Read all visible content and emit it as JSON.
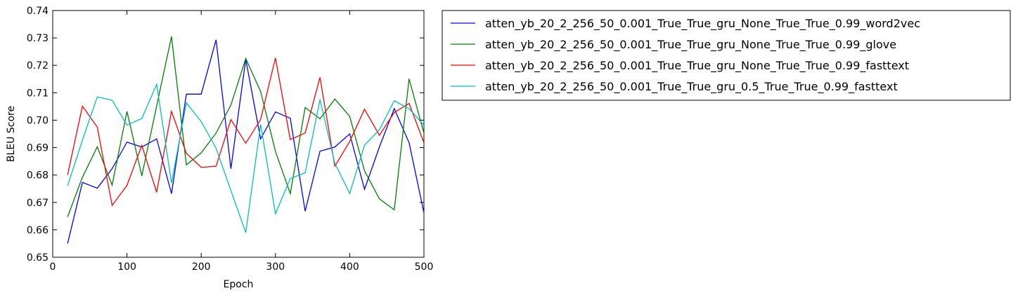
{
  "chart_data": {
    "type": "line",
    "title": "",
    "xlabel": "Epoch",
    "ylabel": "BLEU Score",
    "xlim": [
      0,
      500
    ],
    "ylim": [
      0.65,
      0.74
    ],
    "xticks": [
      0,
      100,
      200,
      300,
      400,
      500
    ],
    "yticks": [
      0.65,
      0.66,
      0.67,
      0.68,
      0.69,
      0.7,
      0.71,
      0.72,
      0.73,
      0.74
    ],
    "grid": false,
    "legend_position": "outside-right",
    "x": [
      20,
      40,
      60,
      80,
      100,
      120,
      140,
      160,
      180,
      200,
      220,
      240,
      260,
      280,
      300,
      320,
      340,
      360,
      380,
      400,
      420,
      440,
      460,
      480,
      500
    ],
    "series": [
      {
        "name": "atten_yb_20_2_256_50_0.001_True_True_gru_None_True_True_0.99_word2vec",
        "color": "#0000ff",
        "values": [
          0.655,
          0.6773,
          0.6752,
          0.6823,
          0.692,
          0.6902,
          0.6932,
          0.6732,
          0.7095,
          0.7095,
          0.7293,
          0.6823,
          0.7222,
          0.6932,
          0.703,
          0.7007,
          0.6668,
          0.6887,
          0.6902,
          0.695,
          0.6748,
          0.6902,
          0.7042,
          0.6918,
          0.6662
        ]
      },
      {
        "name": "atten_yb_20_2_256_50_0.001_True_True_gru_None_True_True_0.99_glove",
        "color": "#008000",
        "values": [
          0.6647,
          0.6792,
          0.6903,
          0.6763,
          0.7032,
          0.6797,
          0.7052,
          0.7305,
          0.6837,
          0.6881,
          0.6953,
          0.7055,
          0.7225,
          0.7105,
          0.6886,
          0.6732,
          0.7046,
          0.7005,
          0.7077,
          0.7014,
          0.6815,
          0.6713,
          0.6673,
          0.7151,
          0.6952
        ]
      },
      {
        "name": "atten_yb_20_2_256_50_0.001_True_True_gru_None_True_True_0.99_fasttext",
        "color": "#ff0000",
        "values": [
          0.68,
          0.7051,
          0.6975,
          0.6689,
          0.6762,
          0.6908,
          0.6737,
          0.7032,
          0.6879,
          0.6828,
          0.6832,
          0.7002,
          0.6916,
          0.7002,
          0.7227,
          0.6929,
          0.6953,
          0.7156,
          0.6832,
          0.6922,
          0.704,
          0.6945,
          0.7028,
          0.7061,
          0.6918
        ]
      },
      {
        "name": "atten_yb_20_2_256_50_0.001_True_True_gru_0.5_True_True_0.99_fasttext",
        "color": "#00bfbf",
        "values": [
          0.6761,
          0.6927,
          0.7085,
          0.7073,
          0.6982,
          0.7006,
          0.7131,
          0.6771,
          0.7063,
          0.6995,
          0.6898,
          0.6743,
          0.659,
          0.6985,
          0.6659,
          0.6787,
          0.6808,
          0.7075,
          0.6843,
          0.6733,
          0.6909,
          0.6965,
          0.7071,
          0.7042,
          0.6982
        ]
      }
    ]
  }
}
